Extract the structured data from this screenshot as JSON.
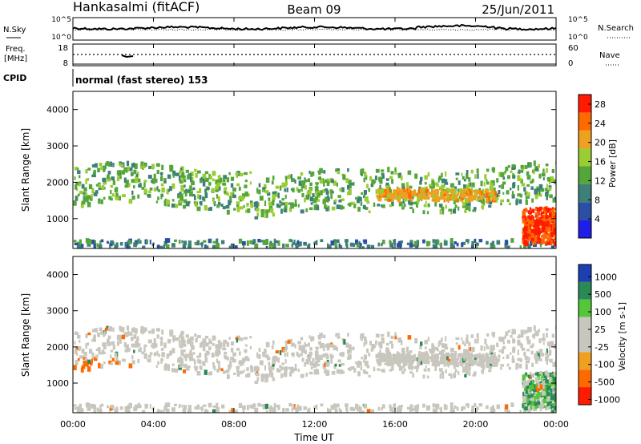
{
  "header": {
    "station": "Hankasalmi (fitACF)",
    "beam": "Beam 09",
    "date": "25/Jun/2011"
  },
  "noise_panel": {
    "left_label": "N.Sky",
    "right_label": "N.Search",
    "left_ticks": [
      "10^5",
      "10^0"
    ],
    "right_ticks": [
      "10^5",
      "10^0"
    ]
  },
  "freq_panel": {
    "left_label_1": "Freq.",
    "left_label_2": "[MHz]",
    "right_label": "Nave",
    "left_ticks": [
      "18",
      "8"
    ],
    "right_ticks": [
      "60",
      "0"
    ]
  },
  "cpid": {
    "label": "CPID",
    "value": "normal (fast stereo) 153"
  },
  "x_axis": {
    "label": "Time UT",
    "ticks": [
      "00:00",
      "04:00",
      "08:00",
      "12:00",
      "16:00",
      "20:00",
      "00:00"
    ]
  },
  "colors": {
    "power": [
      "#1e1ee6",
      "#2a4fa5",
      "#3d7f7a",
      "#54a63a",
      "#9acd32",
      "#f0a020",
      "#ff6a00",
      "#ff1a00"
    ],
    "velocity": [
      "#ff1a00",
      "#ff6a00",
      "#f0a020",
      "#c9c7bd",
      "#c9c7bd",
      "#54c63a",
      "#2a8a55",
      "#1e3fb0"
    ]
  },
  "chart_data": [
    {
      "type": "heatmap",
      "title": "Power",
      "ylabel": "Slant Range [km]",
      "ylim": [
        180,
        4500
      ],
      "xlim": [
        0,
        24
      ],
      "y_ticks": [
        "1000",
        "2000",
        "3000",
        "4000"
      ],
      "colorbar": {
        "label": "Power [dB]",
        "ticks": [
          "4",
          "8",
          "12",
          "16",
          "20",
          "24",
          "28"
        ],
        "range": [
          0,
          30
        ]
      },
      "bands": [
        {
          "name": "near range echoes",
          "t_start": 0,
          "t_end": 24,
          "range_km": [
            200,
            400
          ],
          "value_db": 10
        },
        {
          "name": "main F-region band",
          "t_start": 0,
          "t_end": 24,
          "range_km": [
            1300,
            2400
          ],
          "value_db": 14
        },
        {
          "name": "evening enhancement",
          "t_start": 15,
          "t_end": 21,
          "range_km": [
            1500,
            1800
          ],
          "value_db": 22
        },
        {
          "name": "late evening strong echoes",
          "t_start": 22.3,
          "t_end": 24,
          "range_km": [
            300,
            1300
          ],
          "value_db": 28
        }
      ]
    },
    {
      "type": "heatmap",
      "title": "Velocity",
      "ylabel": "Slant Range [km]",
      "ylim": [
        180,
        4500
      ],
      "xlim": [
        0,
        24
      ],
      "y_ticks": [
        "1000",
        "2000",
        "3000",
        "4000"
      ],
      "colorbar": {
        "label": "Velocity [m s-1]",
        "ticks": [
          "1000",
          "500",
          "100",
          "25",
          "-25",
          "-100",
          "-500",
          "-1000"
        ]
      },
      "bands": [
        {
          "name": "main band",
          "t_start": 0,
          "t_end": 24,
          "range_km": [
            1300,
            2400
          ],
          "value_ms": 0
        },
        {
          "name": "early receding patch",
          "t_start": 0,
          "t_end": 3,
          "range_km": [
            1300,
            1700
          ],
          "value_ms": -150
        },
        {
          "name": "late approaching patch",
          "t_start": 22,
          "t_end": 24,
          "range_km": [
            300,
            1300
          ],
          "value_ms": 100
        }
      ]
    }
  ]
}
